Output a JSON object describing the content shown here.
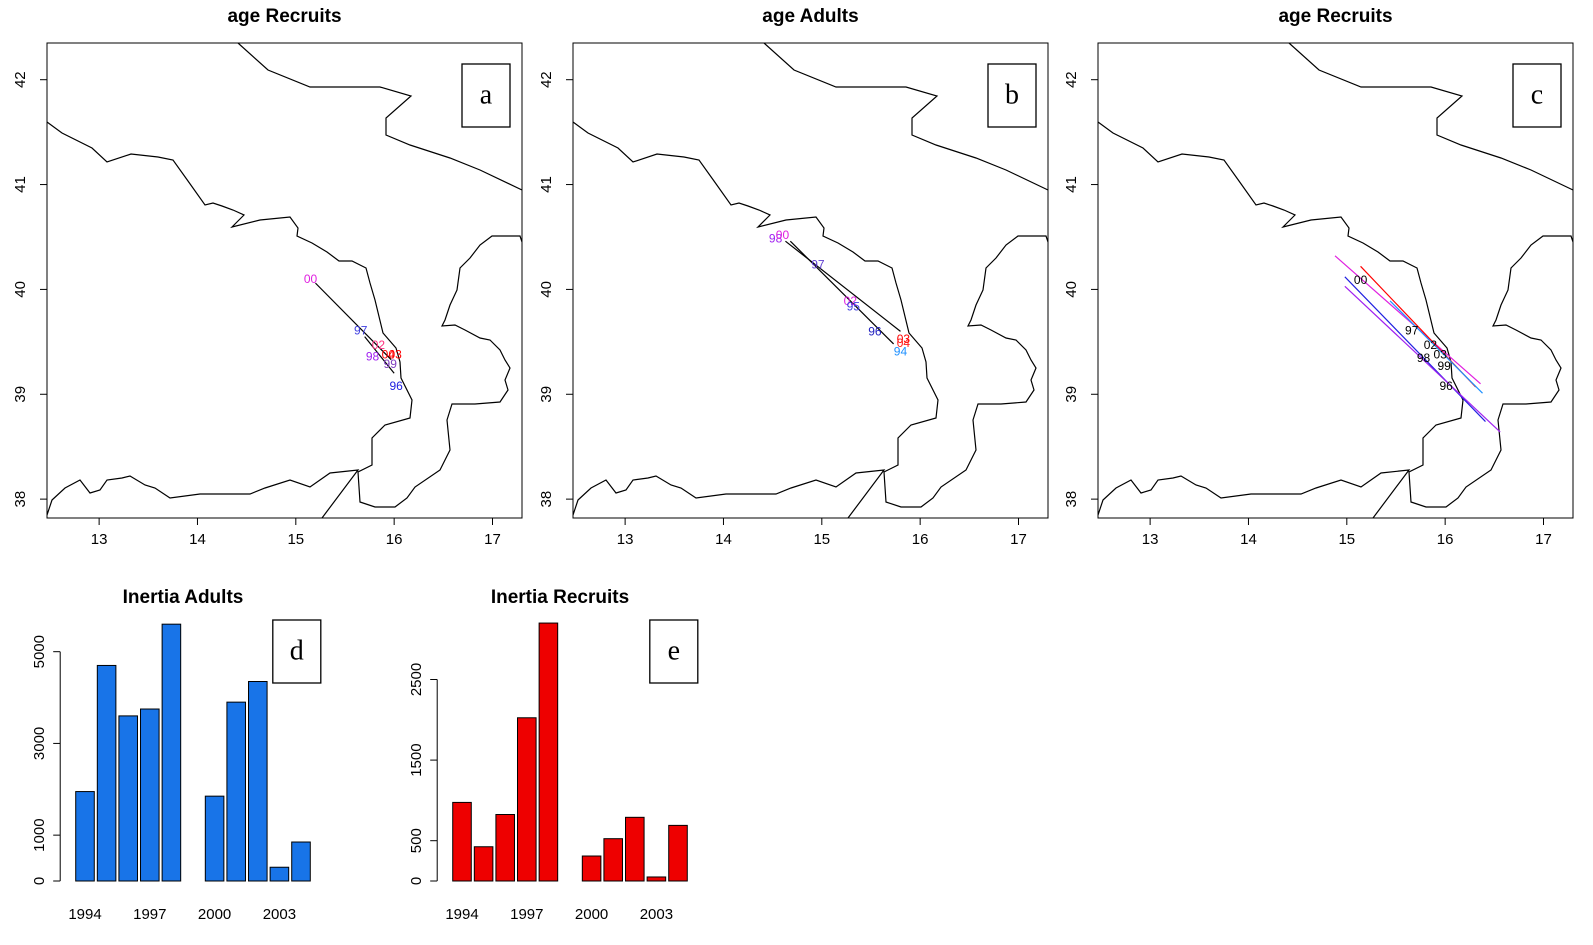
{
  "chart_data": [
    {
      "type": "map",
      "title": "age Recruits",
      "panel_label": "a",
      "xlim": [
        12.47,
        17.3
      ],
      "ylim": [
        37.82,
        42.35
      ],
      "xticks": [
        13,
        14,
        15,
        16,
        17
      ],
      "yticks": [
        38,
        39,
        40,
        41,
        42
      ],
      "points": {
        "labels": [
          "00",
          "97",
          "02",
          "98",
          "04",
          "03",
          "99",
          "96"
        ],
        "x": [
          15.15,
          15.66,
          15.84,
          15.78,
          15.94,
          16.01,
          15.96,
          16.02
        ],
        "y": [
          40.09,
          39.6,
          39.46,
          39.35,
          39.37,
          39.37,
          39.28,
          39.07
        ],
        "colors": [
          "#e020e0",
          "#4040e0",
          "#ff3080",
          "#a020f0",
          "#ff0000",
          "#ff0000",
          "#8040c0",
          "#2020e0"
        ]
      },
      "segments": [
        {
          "color": "#000000",
          "x": [
            15.2,
            15.97
          ],
          "y": [
            40.06,
            39.33
          ]
        },
        {
          "color": "#000000",
          "x": [
            15.7,
            16.0
          ],
          "y": [
            39.55,
            39.2
          ]
        }
      ]
    },
    {
      "type": "map",
      "title": "age Adults",
      "panel_label": "b",
      "xlim": [
        12.47,
        17.3
      ],
      "ylim": [
        37.82,
        42.35
      ],
      "xticks": [
        13,
        14,
        15,
        16,
        17
      ],
      "yticks": [
        38,
        39,
        40,
        41,
        42
      ],
      "points": {
        "labels": [
          "98",
          "00",
          "97",
          "02",
          "95",
          "96",
          "03",
          "04",
          "94"
        ],
        "x": [
          14.53,
          14.6,
          14.96,
          15.29,
          15.32,
          15.54,
          15.83,
          15.83,
          15.8
        ],
        "y": [
          40.48,
          40.51,
          40.23,
          39.88,
          39.83,
          39.59,
          39.52,
          39.48,
          39.4
        ],
        "colors": [
          "#a020f0",
          "#e020e0",
          "#6040d0",
          "#e020e0",
          "#4040e0",
          "#2020c0",
          "#ff0000",
          "#ff2020",
          "#1e90ff"
        ]
      },
      "segments": [
        {
          "color": "#000000",
          "x": [
            14.68,
            15.73
          ],
          "y": [
            40.46,
            39.48
          ]
        },
        {
          "color": "#000000",
          "x": [
            14.63,
            15.8
          ],
          "y": [
            40.46,
            39.6
          ]
        }
      ]
    },
    {
      "type": "map",
      "title": "age Recruits",
      "panel_label": "c",
      "xlim": [
        12.47,
        17.3
      ],
      "ylim": [
        37.82,
        42.35
      ],
      "xticks": [
        13,
        14,
        15,
        16,
        17
      ],
      "yticks": [
        38,
        39,
        40,
        41,
        42
      ],
      "points": {
        "labels": [
          "00",
          "97",
          "02",
          "98",
          "03",
          "99",
          "96"
        ],
        "x": [
          15.14,
          15.66,
          15.85,
          15.78,
          15.95,
          15.99,
          16.01
        ],
        "y": [
          40.08,
          39.6,
          39.46,
          39.34,
          39.37,
          39.26,
          39.07
        ],
        "colors": [
          "#000000",
          "#000000",
          "#000000",
          "#000000",
          "#000000",
          "#000000",
          "#000000"
        ]
      },
      "segments": [
        {
          "color": "#e020e0",
          "x": [
            14.88,
            16.36
          ],
          "y": [
            40.32,
            39.1
          ]
        },
        {
          "color": "#2020e0",
          "x": [
            14.98,
            16.41
          ],
          "y": [
            40.12,
            38.74
          ]
        },
        {
          "color": "#a020f0",
          "x": [
            14.98,
            16.56
          ],
          "y": [
            40.03,
            38.64
          ]
        },
        {
          "color": "#ff0000",
          "x": [
            15.14,
            16.31
          ],
          "y": [
            40.22,
            39.07
          ]
        },
        {
          "color": "#1e90ff",
          "x": [
            15.44,
            16.38
          ],
          "y": [
            39.89,
            39.01
          ]
        }
      ]
    },
    {
      "type": "bar",
      "title": "Inertia Adults",
      "panel_label": "d",
      "categories": [
        "1994",
        null,
        null,
        "1997",
        null,
        null,
        "2000",
        null,
        null,
        "2003",
        null
      ],
      "values": [
        1950,
        4700,
        3600,
        3750,
        5600,
        null,
        1850,
        3900,
        4350,
        300,
        850
      ],
      "color": "#1874e8",
      "ylim": [
        0,
        5800
      ],
      "yticks": [
        0,
        1000,
        3000,
        5000
      ]
    },
    {
      "type": "bar",
      "title": "Inertia Recruits",
      "panel_label": "e",
      "categories": [
        "1994",
        null,
        null,
        "1997",
        null,
        null,
        "2000",
        null,
        null,
        "2003",
        null
      ],
      "values": [
        975,
        425,
        825,
        2025,
        3200,
        null,
        310,
        525,
        790,
        50,
        690
      ],
      "color": "#ee0000",
      "ylim": [
        0,
        3300
      ],
      "yticks": [
        0,
        500,
        1500,
        2500
      ]
    }
  ]
}
